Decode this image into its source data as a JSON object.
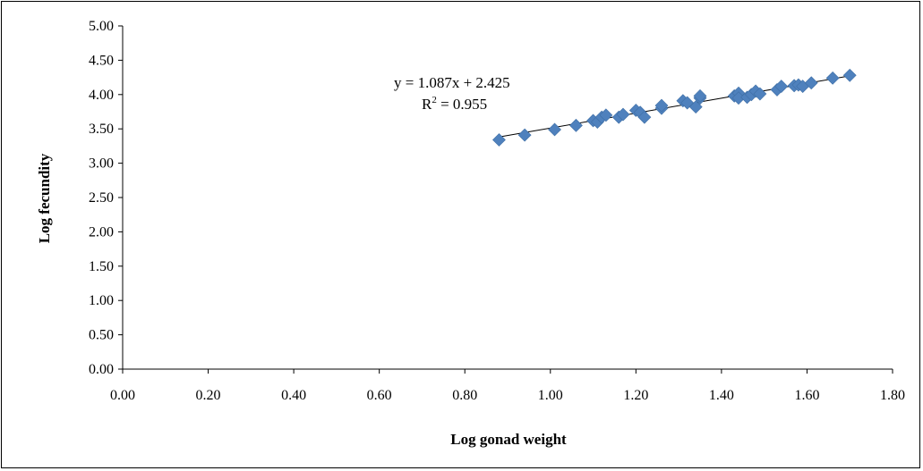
{
  "chart_data": {
    "type": "scatter",
    "title": "",
    "xlabel": "Log gonad weight",
    "ylabel": "Log fecundity",
    "xlim": [
      0,
      1.8
    ],
    "ylim": [
      0,
      5
    ],
    "x_ticks": [
      "0.00",
      "0.20",
      "0.40",
      "0.60",
      "0.80",
      "1.00",
      "1.20",
      "1.40",
      "1.60",
      "1.80"
    ],
    "y_ticks": [
      "0.00",
      "0.50",
      "1.00",
      "1.50",
      "2.00",
      "2.50",
      "3.00",
      "3.50",
      "4.00",
      "4.50",
      "5.00"
    ],
    "grid": false,
    "legend": "none",
    "marker_color": "#4f81bd",
    "series": [
      {
        "points": [
          [
            0.88,
            3.34
          ],
          [
            0.94,
            3.41
          ],
          [
            1.01,
            3.49
          ],
          [
            1.06,
            3.55
          ],
          [
            1.1,
            3.62
          ],
          [
            1.11,
            3.6
          ],
          [
            1.12,
            3.67
          ],
          [
            1.13,
            3.7
          ],
          [
            1.16,
            3.67
          ],
          [
            1.17,
            3.71
          ],
          [
            1.2,
            3.77
          ],
          [
            1.21,
            3.74
          ],
          [
            1.22,
            3.67
          ],
          [
            1.26,
            3.8
          ],
          [
            1.26,
            3.84
          ],
          [
            1.31,
            3.91
          ],
          [
            1.32,
            3.88
          ],
          [
            1.34,
            3.82
          ],
          [
            1.35,
            3.95
          ],
          [
            1.35,
            3.98
          ],
          [
            1.43,
            3.98
          ],
          [
            1.44,
            4.02
          ],
          [
            1.44,
            3.95
          ],
          [
            1.46,
            3.96
          ],
          [
            1.47,
            4.0
          ],
          [
            1.48,
            4.05
          ],
          [
            1.49,
            4.01
          ],
          [
            1.53,
            4.07
          ],
          [
            1.54,
            4.12
          ],
          [
            1.57,
            4.13
          ],
          [
            1.58,
            4.14
          ],
          [
            1.59,
            4.12
          ],
          [
            1.61,
            4.17
          ],
          [
            1.66,
            4.24
          ],
          [
            1.7,
            4.28
          ]
        ]
      }
    ],
    "trendline": {
      "slope": 1.087,
      "intercept": 2.425,
      "x_range": [
        0.88,
        1.7
      ],
      "equation": "y = 1.087x + 2.425",
      "r2_prefix": "R",
      "r2_sup": "2",
      "r2_value": " = 0.955"
    }
  }
}
